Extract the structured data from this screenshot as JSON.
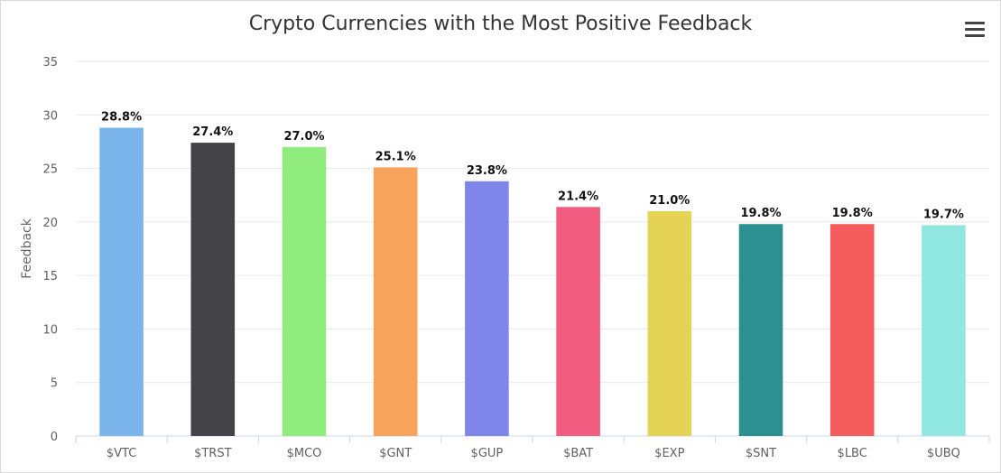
{
  "chart_data": {
    "type": "bar",
    "title": "Crypto Currencies with the Most Positive Feedback",
    "ylabel": "Feedback",
    "xlabel": "",
    "categories": [
      "$VTC",
      "$TRST",
      "$MCO",
      "$GNT",
      "$GUP",
      "$BAT",
      "$EXP",
      "$SNT",
      "$LBC",
      "$UBQ"
    ],
    "values": [
      28.8,
      27.4,
      27.0,
      25.1,
      23.8,
      21.4,
      21.0,
      19.8,
      19.8,
      19.7
    ],
    "data_labels": [
      "28.8%",
      "27.4%",
      "27.0%",
      "25.1%",
      "23.8%",
      "21.4%",
      "21.0%",
      "19.8%",
      "19.8%",
      "19.7%"
    ],
    "colors": [
      "#7cb5ec",
      "#434348",
      "#90ed7d",
      "#f7a35c",
      "#8085e9",
      "#f15c80",
      "#e4d354",
      "#2b908f",
      "#f45b5b",
      "#91e8e1"
    ],
    "ylim": [
      0,
      35
    ],
    "yticks": [
      0,
      5,
      10,
      15,
      20,
      25,
      30,
      35
    ],
    "grid": true,
    "legend": "none"
  },
  "menu": {
    "icon": "hamburger-menu-icon"
  }
}
